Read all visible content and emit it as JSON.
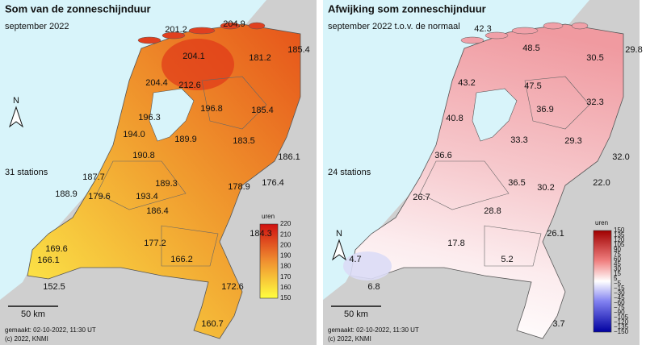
{
  "panels": [
    {
      "title": "Som van de zonneschijnduur",
      "subtitle": "september 2022",
      "stations": "31 stations",
      "scale": "50 km",
      "north": "N",
      "footer": [
        "gemaakt: 02-10-2022, 11:30 UT",
        "(c) 2022, KNMI"
      ],
      "legend_unit": "uren",
      "legend_ticks": [
        "220",
        "210",
        "200",
        "190",
        "180",
        "170",
        "160",
        "150"
      ],
      "values": [
        "201.2",
        "204.9",
        "185.4",
        "204.1",
        "181.2",
        "204.4",
        "212.6",
        "196.8",
        "185.4",
        "196.3",
        "194.0",
        "189.9",
        "183.5",
        "190.8",
        "186.1",
        "187.7",
        "189.3",
        "178.9",
        "176.4",
        "188.9",
        "179.6",
        "193.4",
        "186.4",
        "184.3",
        "177.2",
        "169.6",
        "166.1",
        "166.2",
        "152.5",
        "172.6",
        "160.7"
      ]
    },
    {
      "title": "Afwijking som zonneschijnduur",
      "subtitle": "september 2022  t.o.v. de normaal",
      "stations": "24 stations",
      "scale": "50 km",
      "north": "N",
      "footer": [
        "gemaakt: 02-10-2022, 11:30 UT",
        "(c) 2022, KNMI"
      ],
      "legend_unit": "uren",
      "legend_ticks": [
        "150",
        "135",
        "120",
        "105",
        "90",
        "75",
        "60",
        "45",
        "30",
        "15",
        "5",
        "−5",
        "−15",
        "−30",
        "−45",
        "−60",
        "−75",
        "−90",
        "−105",
        "−120",
        "−135",
        "−150"
      ],
      "values": [
        "42.3",
        "48.5",
        "30.5",
        "29.8",
        "43.2",
        "47.5",
        "36.9",
        "32.3",
        "40.8",
        "33.3",
        "29.3",
        "36.6",
        "32.0",
        "36.5",
        "30.2",
        "22.0",
        "26.7",
        "28.8",
        "26.1",
        "17.8",
        "4.7",
        "5.2",
        "6.8",
        "3.7"
      ]
    }
  ]
}
